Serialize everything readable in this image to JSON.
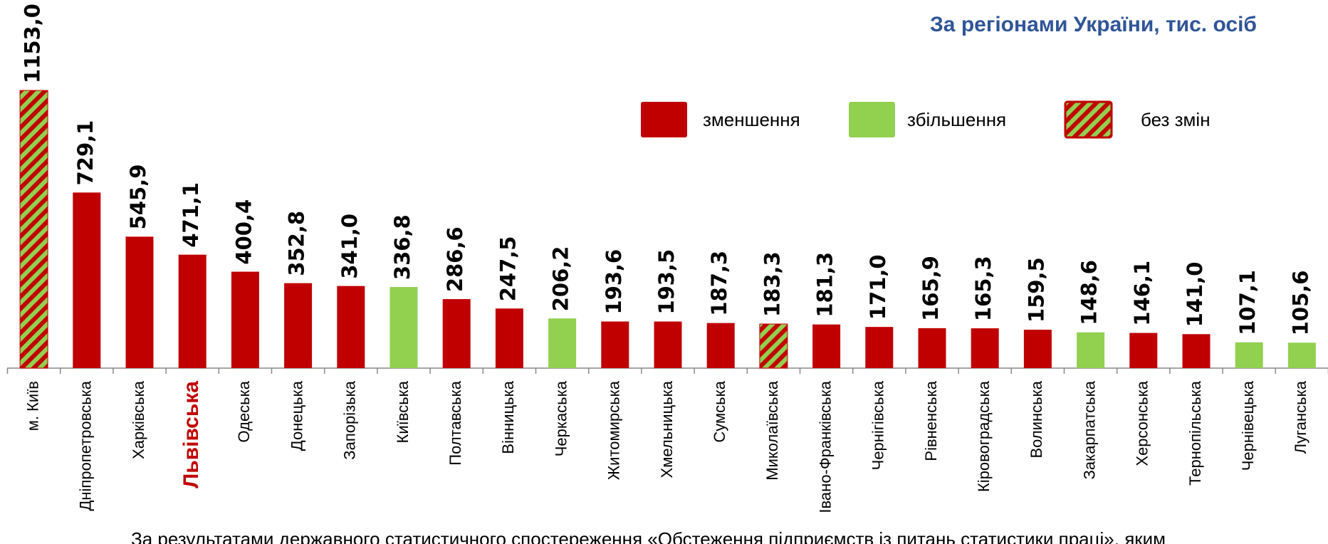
{
  "chart_data": {
    "type": "bar",
    "title": "За регіонами України, тис. осіб",
    "note": "За результатами державного статистичного спостереження «Обстеження підприємств із питань статистики праці», яким",
    "categories": [
      "м. Київ",
      "Дніпропетровська",
      "Харківська",
      "Львівська",
      "Одеська",
      "Донецька",
      "Запорізька",
      "Київська",
      "Полтавська",
      "Вінницька",
      "Черкаська",
      "Житомирська",
      "Хмельницька",
      "Сумська",
      "Миколаївська",
      "Івано-Франківська",
      "Чернігівська",
      "Рівненська",
      "Кіровоградська",
      "Волинська",
      "Закарпатська",
      "Херсонська",
      "Тернопільська",
      "Чернівецька",
      "Луганська"
    ],
    "values": [
      1153.0,
      729.1,
      545.9,
      471.1,
      400.4,
      352.8,
      341.0,
      336.8,
      286.6,
      247.5,
      206.2,
      193.6,
      193.5,
      187.3,
      183.3,
      181.3,
      171.0,
      165.9,
      165.3,
      159.5,
      148.6,
      146.1,
      141.0,
      107.1,
      105.6
    ],
    "value_labels": [
      "1153,0",
      "729,1",
      "545,9",
      "471,1",
      "400,4",
      "352,8",
      "341,0",
      "336,8",
      "286,6",
      "247,5",
      "206,2",
      "193,6",
      "193,5",
      "187,3",
      "183,3",
      "181,3",
      "171,0",
      "165,9",
      "165,3",
      "159,5",
      "148,6",
      "146,1",
      "141,0",
      "107,1",
      "105,6"
    ],
    "colors": [
      "hatch",
      "#c00000",
      "#c00000",
      "#c00000",
      "#c00000",
      "#c00000",
      "#c00000",
      "#92d050",
      "#c00000",
      "#c00000",
      "#92d050",
      "#c00000",
      "#c00000",
      "#c00000",
      "hatch",
      "#c00000",
      "#c00000",
      "#c00000",
      "#c00000",
      "#c00000",
      "#92d050",
      "#c00000",
      "#c00000",
      "#92d050",
      "#92d050"
    ],
    "highlight_index": 3,
    "legend": [
      {
        "name": "зменшення",
        "color": "#c00000"
      },
      {
        "name": "збільшення",
        "color": "#92d050"
      },
      {
        "name": "без змін",
        "color": "hatch"
      }
    ]
  }
}
